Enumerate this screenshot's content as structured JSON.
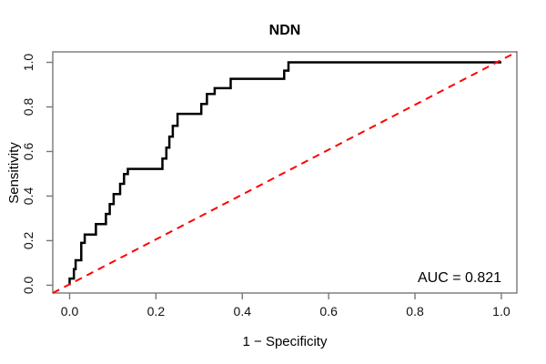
{
  "figure": {
    "background": "#ffffff"
  },
  "chart_data": {
    "type": "line",
    "subtype": "roc-curve",
    "title": "NDN",
    "xlabel": "1 − Specificity",
    "ylabel": "Sensitivity",
    "x_ticks": [
      "0.0",
      "0.2",
      "0.4",
      "0.6",
      "0.8",
      "1.0"
    ],
    "x_tick_values": [
      0,
      0.2,
      0.4,
      0.6,
      0.8,
      1.0
    ],
    "y_ticks": [
      "0.0",
      "0.2",
      "0.4",
      "0.6",
      "0.8",
      "1.0"
    ],
    "y_tick_values": [
      0,
      0.2,
      0.4,
      0.6,
      0.8,
      1.0
    ],
    "xlim": [
      -0.039,
      1.036
    ],
    "ylim": [
      -0.035,
      1.047
    ],
    "grid": false,
    "legend": "none",
    "annotations": [
      {
        "text": "AUC = 0.821",
        "x": 0.9,
        "y": 0.03
      }
    ],
    "series": [
      {
        "name": "roc-curve",
        "label": "ROC curve",
        "color": "#000000",
        "style": "solid",
        "line_width": 2.5,
        "points_are": "step-vertices",
        "points": [
          [
            0.0,
            0.0
          ],
          [
            0.0,
            0.03
          ],
          [
            0.01,
            0.03
          ],
          [
            0.01,
            0.072
          ],
          [
            0.014,
            0.072
          ],
          [
            0.014,
            0.112
          ],
          [
            0.027,
            0.112
          ],
          [
            0.027,
            0.19
          ],
          [
            0.035,
            0.19
          ],
          [
            0.035,
            0.227
          ],
          [
            0.061,
            0.227
          ],
          [
            0.061,
            0.274
          ],
          [
            0.084,
            0.274
          ],
          [
            0.084,
            0.32
          ],
          [
            0.093,
            0.32
          ],
          [
            0.093,
            0.364
          ],
          [
            0.102,
            0.364
          ],
          [
            0.102,
            0.409
          ],
          [
            0.117,
            0.409
          ],
          [
            0.117,
            0.455
          ],
          [
            0.126,
            0.455
          ],
          [
            0.126,
            0.499
          ],
          [
            0.135,
            0.499
          ],
          [
            0.135,
            0.522
          ],
          [
            0.215,
            0.522
          ],
          [
            0.215,
            0.568
          ],
          [
            0.224,
            0.568
          ],
          [
            0.224,
            0.617
          ],
          [
            0.231,
            0.617
          ],
          [
            0.231,
            0.667
          ],
          [
            0.239,
            0.667
          ],
          [
            0.239,
            0.715
          ],
          [
            0.25,
            0.715
          ],
          [
            0.25,
            0.769
          ],
          [
            0.305,
            0.769
          ],
          [
            0.305,
            0.813
          ],
          [
            0.318,
            0.813
          ],
          [
            0.318,
            0.858
          ],
          [
            0.336,
            0.858
          ],
          [
            0.336,
            0.884
          ],
          [
            0.373,
            0.884
          ],
          [
            0.373,
            0.926
          ],
          [
            0.497,
            0.926
          ],
          [
            0.497,
            0.963
          ],
          [
            0.507,
            0.963
          ],
          [
            0.507,
            1.0
          ],
          [
            1.0,
            1.0
          ]
        ]
      },
      {
        "name": "chance-diagonal",
        "label": "Chance line",
        "color": "#FF0000",
        "style": "dashed",
        "line_width": 2,
        "points": [
          [
            -0.039,
            -0.035
          ],
          [
            1.036,
            1.047
          ]
        ]
      }
    ]
  },
  "colors": {
    "curve": "#000000",
    "diagonal": "#FF0000",
    "box": "#777777",
    "text": "#000000",
    "background": "#FFFFFF"
  }
}
